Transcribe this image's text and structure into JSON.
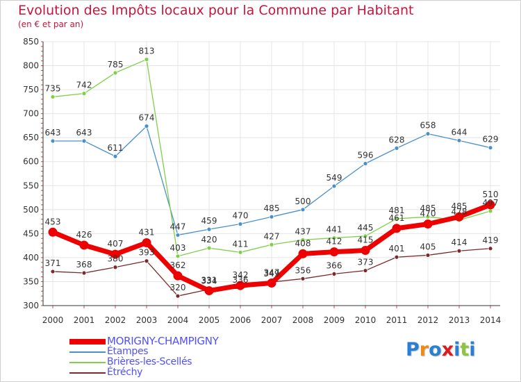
{
  "title": "Evolution des Impôts locaux pour la Commune par Habitant",
  "subtitle": "(en € et par an)",
  "logo": {
    "text": "Proxiti",
    "colors": [
      "#2a7fd4",
      "#f08a10",
      "#2a7fd4",
      "#d81e1e",
      "#2a7fd4",
      "#8cc63f",
      "#2a7fd4"
    ]
  },
  "chart_data": {
    "type": "line",
    "x": [
      2000,
      2001,
      2002,
      2003,
      2004,
      2005,
      2006,
      2007,
      2008,
      2009,
      2010,
      2011,
      2012,
      2013,
      2014
    ],
    "ylim": [
      300,
      850
    ],
    "yticks": [
      300,
      350,
      400,
      450,
      500,
      550,
      600,
      650,
      700,
      750,
      800,
      850
    ],
    "grid": true,
    "legend_placement": "bottom-left",
    "series": [
      {
        "name": "MORIGNY-CHAMPIGNY",
        "color": "#ee0000",
        "main": true,
        "values": [
          453,
          426,
          407,
          431,
          362,
          331,
          342,
          347,
          408,
          412,
          415,
          461,
          470,
          485,
          510
        ],
        "labels": [
          "453",
          "426",
          "407",
          "431",
          "362",
          "331",
          "342",
          "347",
          "408",
          "412",
          "415",
          "461",
          "470",
          "485",
          "510"
        ]
      },
      {
        "name": "Étampes",
        "color": "#4a90c8",
        "values": [
          643,
          643,
          611,
          674,
          447,
          459,
          470,
          485,
          500,
          549,
          596,
          628,
          658,
          644,
          629
        ],
        "labels": [
          "643",
          "643",
          "611",
          "674",
          "447",
          "459",
          "470",
          "485",
          "500",
          "549",
          "596",
          "628",
          "658",
          "644",
          "629"
        ]
      },
      {
        "name": "Brières-les-Scellés",
        "color": "#7ed04a",
        "values": [
          735,
          742,
          785,
          813,
          403,
          420,
          411,
          427,
          437,
          441,
          445,
          481,
          485,
          478,
          497
        ],
        "labels": [
          "735",
          "742",
          "785",
          "813",
          "403",
          "420",
          "411",
          "427",
          "437",
          "441",
          "445",
          "481",
          "485",
          "478",
          "497"
        ]
      },
      {
        "name": "Étréchy",
        "color": "#7a2a2a",
        "values": [
          371,
          368,
          380,
          393,
          320,
          334,
          336,
          349,
          356,
          366,
          373,
          401,
          405,
          414,
          419
        ],
        "labels": [
          "371",
          "368",
          "380",
          "393",
          "320",
          "334",
          "336",
          "349",
          "356",
          "366",
          "373",
          "401",
          "405",
          "414",
          "419"
        ]
      }
    ]
  }
}
